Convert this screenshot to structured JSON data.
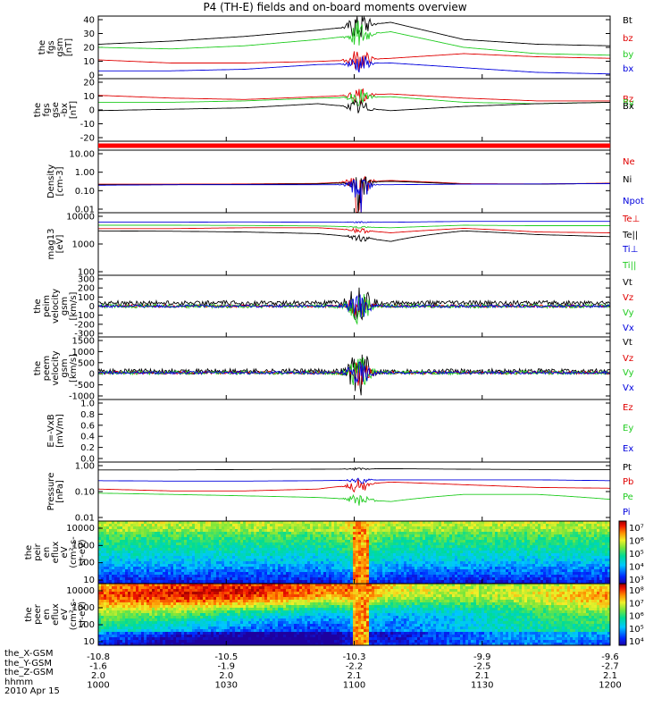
{
  "title": "P4 (TH-E) fields and on-board moments overview",
  "colors": {
    "black": "#000000",
    "red": "#e00000",
    "green": "#22cc22",
    "blue": "#0000dd",
    "bar": "#ff0000"
  },
  "chart_data": [
    {
      "type": "line",
      "panel": "fgs_gsm",
      "ylabel": [
        "the",
        "fgs",
        "gsm",
        "[nT]"
      ],
      "ylim": [
        0,
        40
      ],
      "ticks": [
        "40",
        "30",
        "20",
        "10",
        "0"
      ],
      "series": [
        {
          "name": "Bt",
          "color": "black",
          "base": [
            22,
            24,
            27,
            31,
            36,
            25,
            22,
            21
          ],
          "spike": 14
        },
        {
          "name": "bz",
          "color": "red",
          "base": [
            12,
            10,
            10,
            11,
            13,
            16,
            14,
            13
          ],
          "spike": 10
        },
        {
          "name": "by",
          "color": "green",
          "base": [
            20,
            19,
            21,
            25,
            30,
            20,
            16,
            15
          ],
          "spike": 12
        },
        {
          "name": "bx",
          "color": "blue",
          "base": [
            5,
            5,
            6,
            9,
            10,
            7,
            4,
            3
          ],
          "spike": 8
        }
      ]
    },
    {
      "type": "line",
      "panel": "fgs_gse",
      "ylabel": [
        "the",
        "fgs",
        "gse",
        "-bx",
        "[nT]"
      ],
      "ylim": [
        -25,
        20
      ],
      "ticks": [
        "20",
        "10",
        "0",
        "-10",
        "-20"
      ],
      "series": [
        {
          "name": "Bz",
          "color": "red",
          "base": [
            8,
            6,
            5,
            7,
            9,
            6,
            4,
            4
          ],
          "spike": 8
        },
        {
          "name": "By",
          "color": "green",
          "base": [
            3,
            3,
            4,
            6,
            7,
            3,
            2,
            3
          ],
          "spike": 8
        },
        {
          "name": "Bx",
          "color": "black",
          "base": [
            -3,
            -2,
            -1,
            2,
            -3,
            0,
            2,
            3
          ],
          "spike": 8
        }
      ]
    },
    {
      "type": "bar_strip",
      "panel": "status",
      "color": "#ff0000"
    },
    {
      "type": "line",
      "panel": "density",
      "ylabel": [
        "Density",
        "[cm-3]"
      ],
      "log": true,
      "ylim": [
        0.01,
        20
      ],
      "ticks": [
        "10.00",
        "1.00",
        "0.10",
        "0.01"
      ],
      "series": [
        {
          "name": "Ne",
          "color": "red",
          "base": [
            0.32,
            0.32,
            0.33,
            0.35,
            0.5,
            0.34,
            0.33,
            0.36
          ],
          "spike": 1
        },
        {
          "name": "Ni",
          "color": "black",
          "base": [
            0.3,
            0.3,
            0.31,
            0.33,
            0.45,
            0.32,
            0.32,
            0.35
          ],
          "spike": 0.8
        },
        {
          "name": "Npot",
          "color": "blue",
          "base": [
            0.28,
            0.3,
            0.3,
            0.3,
            0.3,
            0.32,
            0.33,
            0.34
          ],
          "spike": 0.5
        }
      ]
    },
    {
      "type": "line",
      "panel": "temperature",
      "ylabel": [
        "mag13",
        "[eV]"
      ],
      "log": true,
      "ylim": [
        100,
        15000
      ],
      "ticks": [
        "10000",
        "1000",
        "100"
      ],
      "series": [
        {
          "name": "Te⊥",
          "color": "red",
          "base": [
            4200,
            4200,
            4500,
            4500,
            3000,
            4300,
            3200,
            3000
          ],
          "spike": 1000
        },
        {
          "name": "Te||",
          "color": "black",
          "base": [
            3500,
            3400,
            3200,
            2800,
            1500,
            3500,
            2600,
            2200
          ],
          "spike": 800
        },
        {
          "name": "Ti⊥",
          "color": "blue",
          "base": [
            7000,
            7000,
            7200,
            7000,
            7000,
            7500,
            7500,
            7500
          ],
          "spike": 500
        },
        {
          "name": "Ti||",
          "color": "green",
          "base": [
            5500,
            5500,
            5400,
            5200,
            4500,
            5500,
            5300,
            5300
          ],
          "spike": 500
        }
      ]
    },
    {
      "type": "line",
      "panel": "peim_velocity",
      "ylabel": [
        "the",
        "peim",
        "velocity",
        "gsm",
        "[km/s]"
      ],
      "ylim": [
        -300,
        300
      ],
      "ticks": [
        "300",
        "200",
        "100",
        "0",
        "-100",
        "-200",
        "-300"
      ],
      "series": [
        {
          "name": "Vt",
          "color": "black",
          "base": [
            30,
            30,
            30,
            30,
            30,
            30,
            30,
            30
          ],
          "spike": 250
        },
        {
          "name": "Vz",
          "color": "red",
          "base": [
            0,
            0,
            0,
            0,
            0,
            0,
            0,
            0
          ],
          "spike": 150
        },
        {
          "name": "Vy",
          "color": "green",
          "base": [
            0,
            0,
            0,
            0,
            0,
            0,
            0,
            0
          ],
          "spike": 200
        },
        {
          "name": "Vx",
          "color": "blue",
          "base": [
            0,
            0,
            0,
            0,
            0,
            0,
            0,
            0
          ],
          "spike": 150
        }
      ]
    },
    {
      "type": "line",
      "panel": "peem_velocity",
      "ylabel": [
        "the",
        "peem",
        "velocity",
        "gsm",
        "[km/s]"
      ],
      "ylim": [
        -1200,
        1600
      ],
      "ticks": [
        "1500",
        "1000",
        "500",
        "0",
        "-500",
        "-1000"
      ],
      "series": [
        {
          "name": "Vt",
          "color": "black",
          "base": [
            60,
            60,
            60,
            60,
            60,
            60,
            60,
            60
          ],
          "spike": 1300
        },
        {
          "name": "Vz",
          "color": "red",
          "base": [
            0,
            0,
            0,
            0,
            0,
            0,
            0,
            0
          ],
          "spike": 700
        },
        {
          "name": "Vy",
          "color": "green",
          "base": [
            0,
            0,
            0,
            0,
            0,
            0,
            0,
            0
          ],
          "spike": 900
        },
        {
          "name": "Vx",
          "color": "blue",
          "base": [
            0,
            0,
            0,
            0,
            0,
            0,
            0,
            0
          ],
          "spike": 700
        }
      ]
    },
    {
      "type": "line",
      "panel": "efield",
      "ylabel": [
        "E=-VxB",
        "[mV/m]"
      ],
      "ylim": [
        0,
        1
      ],
      "ticks": [
        "1.0",
        "0.8",
        "0.6",
        "0.4",
        "0.2",
        "0.0"
      ],
      "series": [
        {
          "name": "Ez",
          "color": "red"
        },
        {
          "name": "Ey",
          "color": "green"
        },
        {
          "name": "Ex",
          "color": "blue"
        }
      ]
    },
    {
      "type": "line",
      "panel": "pressure",
      "ylabel": [
        "Pressure",
        "[nPa]"
      ],
      "log": true,
      "ylim": [
        0.01,
        1.3
      ],
      "ticks": [
        "1.00",
        "0.10",
        "0.01"
      ],
      "series": [
        {
          "name": "Pt",
          "color": "black",
          "base": [
            0.68,
            0.68,
            0.7,
            0.72,
            0.75,
            0.72,
            0.7,
            0.7
          ],
          "spike": 0.1
        },
        {
          "name": "Pb",
          "color": "red",
          "base": [
            0.14,
            0.12,
            0.12,
            0.14,
            0.25,
            0.2,
            0.16,
            0.15
          ],
          "spike": 0.15
        },
        {
          "name": "Pe",
          "color": "green",
          "base": [
            0.1,
            0.09,
            0.08,
            0.07,
            0.05,
            0.09,
            0.09,
            0.06
          ],
          "spike": 0.05
        },
        {
          "name": "Pi",
          "color": "blue",
          "base": [
            0.28,
            0.27,
            0.27,
            0.28,
            0.3,
            0.3,
            0.3,
            0.28
          ],
          "spike": 0.1
        }
      ]
    },
    {
      "type": "heatmap",
      "panel": "peir_spec",
      "ylabel": [
        "the",
        "peir",
        "en",
        "eflux",
        "eV",
        "(cm²-s-",
        "sr-eV)"
      ],
      "ticks": [
        "10000",
        "1000",
        "100",
        "10"
      ],
      "colorbar": {
        "ticks": [
          "10⁷",
          "10⁶",
          "10⁵",
          "10⁴",
          "10³"
        ]
      }
    },
    {
      "type": "heatmap",
      "panel": "peer_spec",
      "ylabel": [
        "the",
        "peer",
        "en",
        "eflux",
        "eV",
        "(cm²-s-",
        "sr-eV)"
      ],
      "ticks": [
        "10000",
        "1000",
        "100",
        "10"
      ],
      "colorbar": {
        "ticks": [
          "10⁸",
          "10⁷",
          "10⁶",
          "10⁵",
          "10⁴"
        ]
      }
    }
  ],
  "xaxis": {
    "rows": [
      {
        "label": "the_X-GSM",
        "values": [
          "-10.8",
          "-10.5",
          "-10.3",
          "-9.9",
          "-9.6"
        ]
      },
      {
        "label": "the_Y-GSM",
        "values": [
          "-1.6",
          "-1.9",
          "-2.2",
          "-2.5",
          "-2.7"
        ]
      },
      {
        "label": "the_Z-GSM",
        "values": [
          "2.0",
          "2.0",
          "2.1",
          "2.1",
          "2.1"
        ]
      },
      {
        "label": "hhmm",
        "values": [
          "1000",
          "1030",
          "1100",
          "1130",
          "1200"
        ]
      }
    ],
    "date": "2010 Apr 15"
  }
}
